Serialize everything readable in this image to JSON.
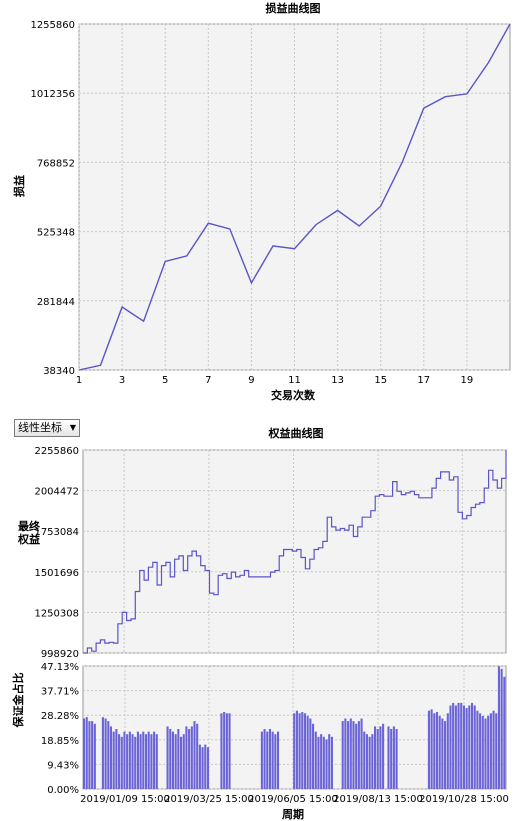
{
  "scale_select": {
    "value": "线性坐标",
    "arrow": "▼"
  },
  "chart_data": [
    {
      "type": "line",
      "title": "损益曲线图",
      "xlabel": "交易次数",
      "ylabel": "损益",
      "x_ticks": [
        1,
        3,
        5,
        7,
        9,
        11,
        13,
        15,
        17,
        19
      ],
      "y_ticks": [
        "38340",
        "281844",
        "525348",
        "768852",
        "1012356",
        "1255860"
      ],
      "ylim": [
        38340,
        1255860
      ],
      "xlim": [
        1,
        21
      ],
      "grid": true,
      "color": "#5a55c8",
      "series": [
        {
          "x": [
            1,
            2,
            3,
            4,
            5,
            6,
            7,
            8,
            9,
            10,
            11,
            12,
            13,
            14,
            15,
            16,
            17,
            18,
            19,
            20,
            21
          ],
          "values": [
            38340,
            55000,
            260000,
            210000,
            420000,
            440000,
            555000,
            535000,
            345000,
            475000,
            465000,
            550000,
            600000,
            545000,
            615000,
            770000,
            960000,
            1000000,
            1010000,
            1120000,
            1255860
          ]
        }
      ]
    },
    {
      "type": "line",
      "title": "权益曲线图",
      "xlabel": "周期",
      "ylabel": "最终权益",
      "y_ticks": [
        "998920",
        "1250308",
        "1501696",
        "1753084",
        "2004472",
        "2255860"
      ],
      "ylim": [
        998920,
        2255860
      ],
      "x_ticks": [
        "2019/01/09 15:00",
        "2019/03/25 15:00",
        "2019/06/05 15:00",
        "2019/08/13 15:00",
        "2019/10/28 15:00"
      ],
      "grid": true,
      "color": "#5a55c8",
      "series": [
        {
          "values": [
            998920,
            1030000,
            1010000,
            1060000,
            1080000,
            1060000,
            1065000,
            1060000,
            1180000,
            1250000,
            1200000,
            1210000,
            1380000,
            1510000,
            1450000,
            1530000,
            1560000,
            1420000,
            1540000,
            1560000,
            1470000,
            1580000,
            1600000,
            1510000,
            1600000,
            1630000,
            1600000,
            1540000,
            1510000,
            1370000,
            1360000,
            1480000,
            1490000,
            1460000,
            1500000,
            1470000,
            1480000,
            1510000,
            1470000,
            1470000,
            1470000,
            1470000,
            1470000,
            1500000,
            1510000,
            1600000,
            1640000,
            1640000,
            1630000,
            1640000,
            1590000,
            1520000,
            1580000,
            1640000,
            1650000,
            1690000,
            1840000,
            1780000,
            1760000,
            1770000,
            1760000,
            1790000,
            1720000,
            1780000,
            1840000,
            1840000,
            1880000,
            1970000,
            1980000,
            1970000,
            1970000,
            2060000,
            2000000,
            1980000,
            1990000,
            2000000,
            1980000,
            1960000,
            1960000,
            1960000,
            2020000,
            2080000,
            2120000,
            2120000,
            2070000,
            2090000,
            1870000,
            1830000,
            1850000,
            1900000,
            1920000,
            1930000,
            2020000,
            2130000,
            2070000,
            2020000,
            2080000,
            2255860
          ]
        }
      ]
    },
    {
      "type": "bar",
      "ylabel": "保证金占比",
      "y_ticks": [
        "0.00%",
        "9.43%",
        "18.85%",
        "28.28%",
        "37.71%",
        "47.13%"
      ],
      "ylim": [
        0,
        47.13
      ],
      "grid": true,
      "color": "#6a64d6",
      "values": [
        27,
        27.5,
        26,
        26,
        25,
        0,
        0,
        27.5,
        27,
        26,
        24,
        22,
        23,
        21,
        20,
        22,
        21,
        22,
        21,
        20,
        22,
        21,
        22,
        21,
        22,
        21,
        22,
        21,
        0,
        0,
        0,
        24,
        23,
        22,
        21,
        23,
        20,
        21,
        24,
        23,
        24,
        26,
        25,
        17,
        16,
        17,
        16,
        0,
        0,
        0,
        0,
        29,
        29.5,
        29,
        29,
        0,
        0,
        0,
        0,
        0,
        0,
        0,
        0,
        0,
        0,
        0,
        22,
        23,
        22,
        23,
        22,
        21,
        22,
        0,
        0,
        0,
        0,
        0,
        29,
        30,
        29,
        29.5,
        29,
        28,
        27,
        25,
        22,
        20,
        21,
        20,
        19,
        21,
        20,
        0,
        0,
        0,
        26,
        27,
        26,
        27,
        26,
        25,
        26,
        27,
        22,
        21,
        20,
        21,
        24,
        23,
        24,
        25,
        0,
        24,
        23,
        24,
        23,
        0,
        0,
        0,
        0,
        0,
        0,
        0,
        0,
        0,
        0,
        0,
        30,
        30.5,
        29,
        29.5,
        28,
        27,
        26,
        29,
        32,
        33,
        32,
        33,
        33,
        32,
        31,
        32,
        33,
        32,
        30,
        29,
        28,
        27,
        28,
        29,
        30,
        29,
        47,
        46,
        43
      ]
    }
  ]
}
